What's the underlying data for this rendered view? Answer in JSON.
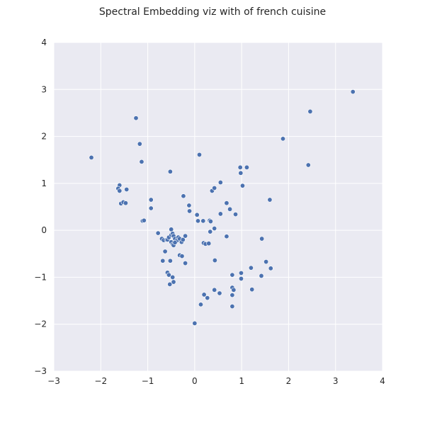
{
  "chart_data": {
    "type": "scatter",
    "title": "Spectral Embedding viz with of french cuisine",
    "xlabel": "",
    "ylabel": "",
    "xlim": [
      -3,
      4
    ],
    "ylim": [
      -3,
      4
    ],
    "xticks": [
      -3,
      -2,
      -1,
      0,
      1,
      2,
      3,
      4
    ],
    "yticks": [
      -3,
      -2,
      -1,
      0,
      1,
      2,
      3,
      4
    ],
    "xtick_labels": [
      "−3",
      "−2",
      "−1",
      "0",
      "1",
      "2",
      "3",
      "4"
    ],
    "ytick_labels": [
      "−3",
      "−2",
      "−1",
      "0",
      "1",
      "2",
      "3",
      "4"
    ],
    "grid": true,
    "legend": "none",
    "colors": {
      "point": "#4C72B0",
      "background": "#EAEAF2",
      "grid": "#FFFFFF"
    },
    "series": [
      {
        "points": [
          [
            3.37,
            2.95
          ],
          [
            2.46,
            2.53
          ],
          [
            1.88,
            1.95
          ],
          [
            2.42,
            1.39
          ],
          [
            -2.2,
            1.55
          ],
          [
            -1.25,
            2.39
          ],
          [
            -1.17,
            1.84
          ],
          [
            -1.13,
            1.46
          ],
          [
            -0.52,
            1.25
          ],
          [
            0.1,
            1.61
          ],
          [
            0.97,
            1.34
          ],
          [
            1.11,
            1.34
          ],
          [
            0.98,
            1.22
          ],
          [
            1.02,
            0.95
          ],
          [
            -1.6,
            0.96
          ],
          [
            -1.63,
            0.89
          ],
          [
            -1.6,
            0.84
          ],
          [
            -1.45,
            0.87
          ],
          [
            -1.57,
            0.57
          ],
          [
            -1.52,
            0.6
          ],
          [
            -1.47,
            0.58
          ],
          [
            -0.93,
            0.65
          ],
          [
            -0.93,
            0.47
          ],
          [
            -1.11,
            0.2
          ],
          [
            -1.08,
            0.21
          ],
          [
            -0.24,
            0.73
          ],
          [
            -0.12,
            0.53
          ],
          [
            -0.11,
            0.41
          ],
          [
            0.05,
            0.33
          ],
          [
            0.07,
            0.2
          ],
          [
            0.18,
            0.2
          ],
          [
            0.32,
            0.21
          ],
          [
            0.34,
            0.19
          ],
          [
            0.37,
            0.84
          ],
          [
            0.42,
            0.9
          ],
          [
            0.55,
            1.02
          ],
          [
            0.68,
            0.58
          ],
          [
            0.75,
            0.45
          ],
          [
            0.55,
            0.35
          ],
          [
            0.87,
            0.34
          ],
          [
            1.6,
            0.65
          ],
          [
            0.42,
            0.04
          ],
          [
            0.33,
            -0.03
          ],
          [
            0.68,
            -0.13
          ],
          [
            1.43,
            -0.18
          ],
          [
            -0.78,
            -0.06
          ],
          [
            -0.7,
            -0.18
          ],
          [
            -0.66,
            -0.21
          ],
          [
            -0.6,
            -0.2
          ],
          [
            -0.58,
            -0.2
          ],
          [
            -0.55,
            -0.15
          ],
          [
            -0.5,
            -0.1
          ],
          [
            -0.5,
            0.02
          ],
          [
            -0.47,
            -0.07
          ],
          [
            -0.45,
            -0.12
          ],
          [
            -0.42,
            -0.18
          ],
          [
            -0.38,
            -0.22
          ],
          [
            -0.35,
            -0.15
          ],
          [
            -0.32,
            -0.18
          ],
          [
            -0.28,
            -0.25
          ],
          [
            -0.25,
            -0.2
          ],
          [
            -0.2,
            -0.12
          ],
          [
            -0.5,
            -0.25
          ],
          [
            -0.47,
            -0.3
          ],
          [
            -0.45,
            -0.32
          ],
          [
            -0.42,
            -0.26
          ],
          [
            -0.63,
            -0.45
          ],
          [
            -0.32,
            -0.53
          ],
          [
            -0.27,
            -0.55
          ],
          [
            -0.52,
            -0.65
          ],
          [
            -0.68,
            -0.65
          ],
          [
            -0.2,
            -0.7
          ],
          [
            0.19,
            -0.27
          ],
          [
            0.23,
            -0.29
          ],
          [
            0.3,
            -0.28
          ],
          [
            0.43,
            -0.64
          ],
          [
            -0.58,
            -0.9
          ],
          [
            -0.55,
            -0.95
          ],
          [
            -0.47,
            -1.0
          ],
          [
            -0.45,
            -1.1
          ],
          [
            -0.53,
            -1.15
          ],
          [
            0.8,
            -0.95
          ],
          [
            0.99,
            -0.91
          ],
          [
            0.99,
            -1.03
          ],
          [
            1.2,
            -0.8
          ],
          [
            1.42,
            -0.97
          ],
          [
            1.52,
            -0.67
          ],
          [
            1.62,
            -0.81
          ],
          [
            0.42,
            -1.27
          ],
          [
            0.53,
            -1.34
          ],
          [
            0.2,
            -1.37
          ],
          [
            0.27,
            -1.44
          ],
          [
            0.8,
            -1.22
          ],
          [
            0.83,
            -1.27
          ],
          [
            0.8,
            -1.38
          ],
          [
            1.22,
            -1.26
          ],
          [
            0.13,
            -1.58
          ],
          [
            0.8,
            -1.62
          ],
          [
            0.0,
            -1.98
          ]
        ]
      }
    ]
  }
}
